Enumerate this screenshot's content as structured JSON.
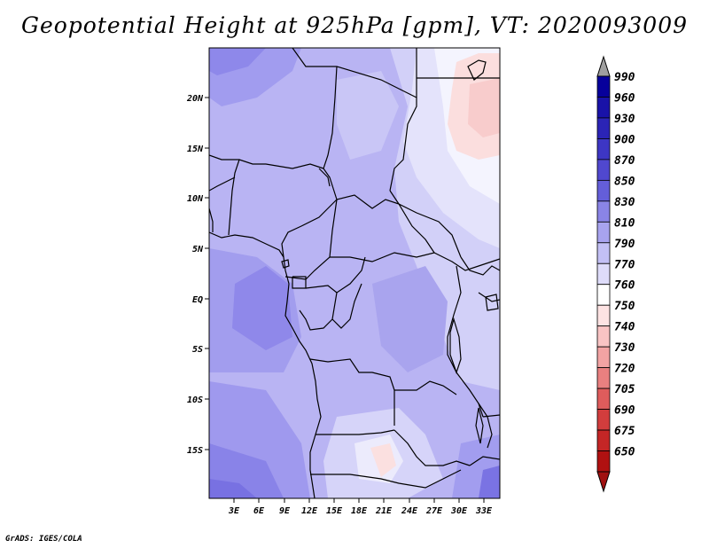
{
  "title": "Geopotential Height at 925hPa [gpm], VT: 2020093009",
  "footer": "GrADS: IGES/COLA",
  "map": {
    "variable": "Geopotential Height",
    "level": "925hPa",
    "units": "gpm",
    "valid_time": "2020093009",
    "lat_labels": [
      "20N",
      "15N",
      "10N",
      "5N",
      "EQ",
      "5S",
      "10S",
      "15S"
    ],
    "lon_labels": [
      "3E",
      "6E",
      "9E",
      "12E",
      "15E",
      "18E",
      "21E",
      "24E",
      "27E",
      "30E",
      "33E"
    ]
  },
  "colorbar": {
    "levels": [
      {
        "label": "990",
        "color": "#07009b"
      },
      {
        "label": "960",
        "color": "#1912a8"
      },
      {
        "label": "930",
        "color": "#2b24b6"
      },
      {
        "label": "900",
        "color": "#3d36c4"
      },
      {
        "label": "870",
        "color": "#5048cf"
      },
      {
        "label": "850",
        "color": "#645ed9"
      },
      {
        "label": "830",
        "color": "#8a84e6"
      },
      {
        "label": "810",
        "color": "#a8a3ef"
      },
      {
        "label": "790",
        "color": "#c3c0f5"
      },
      {
        "label": "770",
        "color": "#dedcfa"
      },
      {
        "label": "760",
        "color": "#ffffff"
      },
      {
        "label": "750",
        "color": "#fde3e3"
      },
      {
        "label": "740",
        "color": "#f9c4c4"
      },
      {
        "label": "730",
        "color": "#f2a3a3"
      },
      {
        "label": "720",
        "color": "#e98080"
      },
      {
        "label": "705",
        "color": "#df5c5c"
      },
      {
        "label": "690",
        "color": "#d23d3d"
      },
      {
        "label": "675",
        "color": "#c42626"
      },
      {
        "label": "650",
        "color": "#b01111"
      }
    ],
    "top_arrow_color": "#a0a0a0",
    "bottom_arrow_color": "#a01010"
  }
}
